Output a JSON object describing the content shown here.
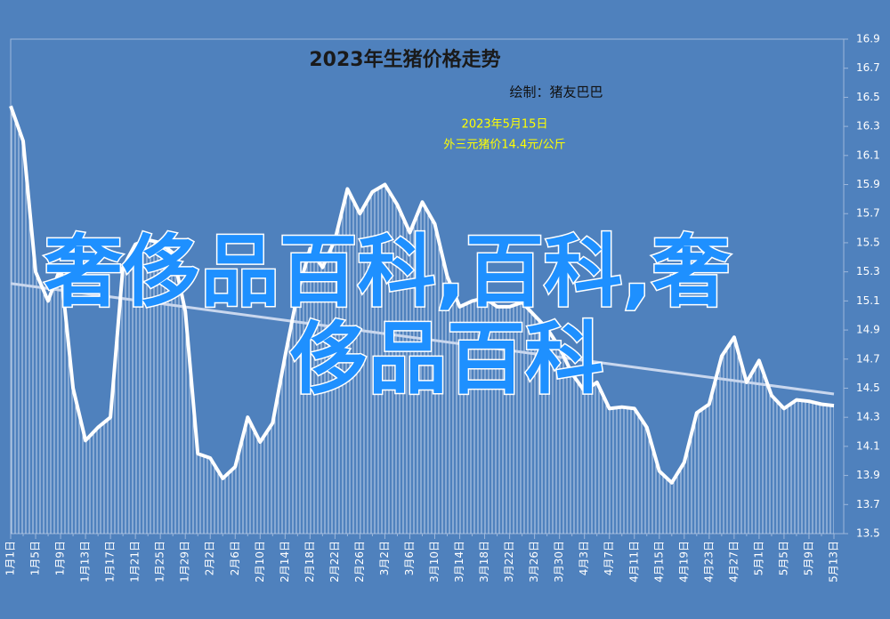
{
  "chart_data": {
    "type": "line",
    "title": "2023年生猪价格走势",
    "subtitle": "绘制：猪友巴巴",
    "annotations": [
      "2023年5月15日",
      "外三元猪价14.4元/公斤"
    ],
    "watermark": [
      "奢侈品百科,百科,奢",
      "侈品百科"
    ],
    "categories": [
      "1月1日",
      null,
      "1月5日",
      null,
      "1月9日",
      null,
      "1月13日",
      null,
      "1月17日",
      null,
      "1月21日",
      null,
      "1月25日",
      null,
      "1月29日",
      null,
      "2月2日",
      null,
      "2月6日",
      null,
      "2月10日",
      null,
      "2月14日",
      null,
      "2月18日",
      null,
      "2月22日",
      null,
      "2月26日",
      null,
      "3月2日",
      null,
      "3月6日",
      null,
      "3月10日",
      null,
      "3月14日",
      null,
      "3月18日",
      null,
      "3月22日",
      null,
      "3月26日",
      null,
      "3月30日",
      null,
      "4月3日",
      null,
      "4月7日",
      null,
      "4月11日",
      null,
      "4月15日",
      null,
      "4月19日",
      null,
      "4月23日",
      null,
      "4月27日",
      null,
      "5月1日",
      null,
      "5月5日",
      null,
      "5月9日",
      null,
      "5月13日"
    ],
    "values": [
      16.44,
      16.2,
      15.3,
      15.1,
      15.33,
      14.5,
      14.14,
      14.23,
      14.3,
      15.33,
      15.49,
      15.52,
      15.5,
      15.43,
      15.03,
      14.05,
      14.02,
      13.88,
      13.96,
      14.3,
      14.13,
      14.26,
      14.72,
      15.15,
      15.46,
      15.33,
      15.52,
      15.87,
      15.7,
      15.85,
      15.9,
      15.76,
      15.57,
      15.78,
      15.63,
      15.27,
      15.06,
      15.1,
      15.12,
      15.06,
      15.06,
      15.09,
      15.0,
      14.91,
      14.78,
      14.6,
      14.48,
      14.54,
      14.36,
      14.37,
      14.36,
      14.23,
      13.93,
      13.85,
      13.99,
      14.33,
      14.39,
      14.72,
      14.85,
      14.54,
      14.69,
      14.45,
      14.36,
      14.42,
      14.41,
      14.39,
      14.38
    ],
    "trendline": [
      15.22,
      14.46
    ],
    "color": "#ffffff",
    "ylim": [
      13.5,
      16.9
    ],
    "yticks": [
      13.5,
      13.7,
      13.9,
      14.1,
      14.3,
      14.5,
      14.7,
      14.9,
      15.1,
      15.3,
      15.5,
      15.7,
      15.9,
      16.1,
      16.3,
      16.5,
      16.7,
      16.9
    ]
  }
}
